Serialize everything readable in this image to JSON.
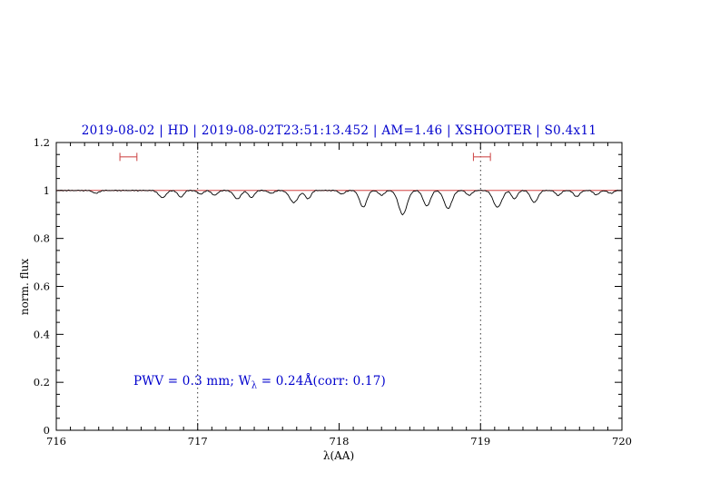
{
  "title": "2019-08-02 | HD | 2019-08-02T23:51:13.452 | AM=1.46 | XSHOOTER | S0.4x11",
  "colors": {
    "title": "#0000cd",
    "annotation": "#0000cd",
    "spectrum": "#000000",
    "continuum": "#cc2222",
    "markers": "#d05050",
    "axis": "#000000"
  },
  "annotation": {
    "part1": "PWV = 0.3 mm; W",
    "sub": "λ",
    "part2": " = 0.24Å(corr: 0.17)"
  },
  "chart_data": {
    "type": "line",
    "title": "2019-08-02 | HD | 2019-08-02T23:51:13.452 | AM=1.46 | XSHOOTER | S0.4x11",
    "xlabel": "λ(AA)",
    "ylabel": "norm. flux",
    "xlim": [
      716,
      720
    ],
    "ylim": [
      0,
      1.2
    ],
    "x_ticks": [
      716,
      717,
      718,
      719,
      720
    ],
    "x_tick_labels": [
      "716",
      "717",
      "718",
      "719",
      "720"
    ],
    "y_ticks": [
      0,
      0.2,
      0.4,
      0.6,
      0.8,
      1,
      1.2
    ],
    "y_tick_labels": [
      "0",
      "0.2",
      "0.4",
      "0.6",
      "0.8",
      "1",
      "1.2"
    ],
    "grid": false,
    "legend": "none",
    "dotted_vlines": [
      717,
      719
    ],
    "continuum": {
      "y": 1.0
    },
    "pwv_markers": [
      {
        "x1": 716.45,
        "x2": 716.57,
        "y": 1.14
      },
      {
        "x1": 718.95,
        "x2": 719.07,
        "y": 1.14
      }
    ],
    "spectrum": {
      "baseline": 1.0,
      "noise_amplitude": 0.0012,
      "absorption_lines": [
        {
          "center": 716.28,
          "depth": 0.012,
          "width": 0.02
        },
        {
          "center": 716.75,
          "depth": 0.03,
          "width": 0.025
        },
        {
          "center": 716.88,
          "depth": 0.028,
          "width": 0.02
        },
        {
          "center": 717.02,
          "depth": 0.015,
          "width": 0.02
        },
        {
          "center": 717.12,
          "depth": 0.02,
          "width": 0.02
        },
        {
          "center": 717.28,
          "depth": 0.035,
          "width": 0.025
        },
        {
          "center": 717.38,
          "depth": 0.03,
          "width": 0.02
        },
        {
          "center": 717.52,
          "depth": 0.012,
          "width": 0.02
        },
        {
          "center": 717.68,
          "depth": 0.05,
          "width": 0.03
        },
        {
          "center": 717.78,
          "depth": 0.035,
          "width": 0.02
        },
        {
          "center": 718.02,
          "depth": 0.015,
          "width": 0.02
        },
        {
          "center": 718.17,
          "depth": 0.07,
          "width": 0.025
        },
        {
          "center": 718.3,
          "depth": 0.02,
          "width": 0.02
        },
        {
          "center": 718.45,
          "depth": 0.1,
          "width": 0.03
        },
        {
          "center": 718.62,
          "depth": 0.065,
          "width": 0.025
        },
        {
          "center": 718.77,
          "depth": 0.075,
          "width": 0.028
        },
        {
          "center": 718.92,
          "depth": 0.02,
          "width": 0.02
        },
        {
          "center": 719.12,
          "depth": 0.07,
          "width": 0.03
        },
        {
          "center": 719.24,
          "depth": 0.035,
          "width": 0.02
        },
        {
          "center": 719.38,
          "depth": 0.05,
          "width": 0.025
        },
        {
          "center": 719.55,
          "depth": 0.02,
          "width": 0.02
        },
        {
          "center": 719.68,
          "depth": 0.025,
          "width": 0.022
        },
        {
          "center": 719.82,
          "depth": 0.018,
          "width": 0.02
        },
        {
          "center": 719.92,
          "depth": 0.012,
          "width": 0.02
        }
      ]
    }
  }
}
